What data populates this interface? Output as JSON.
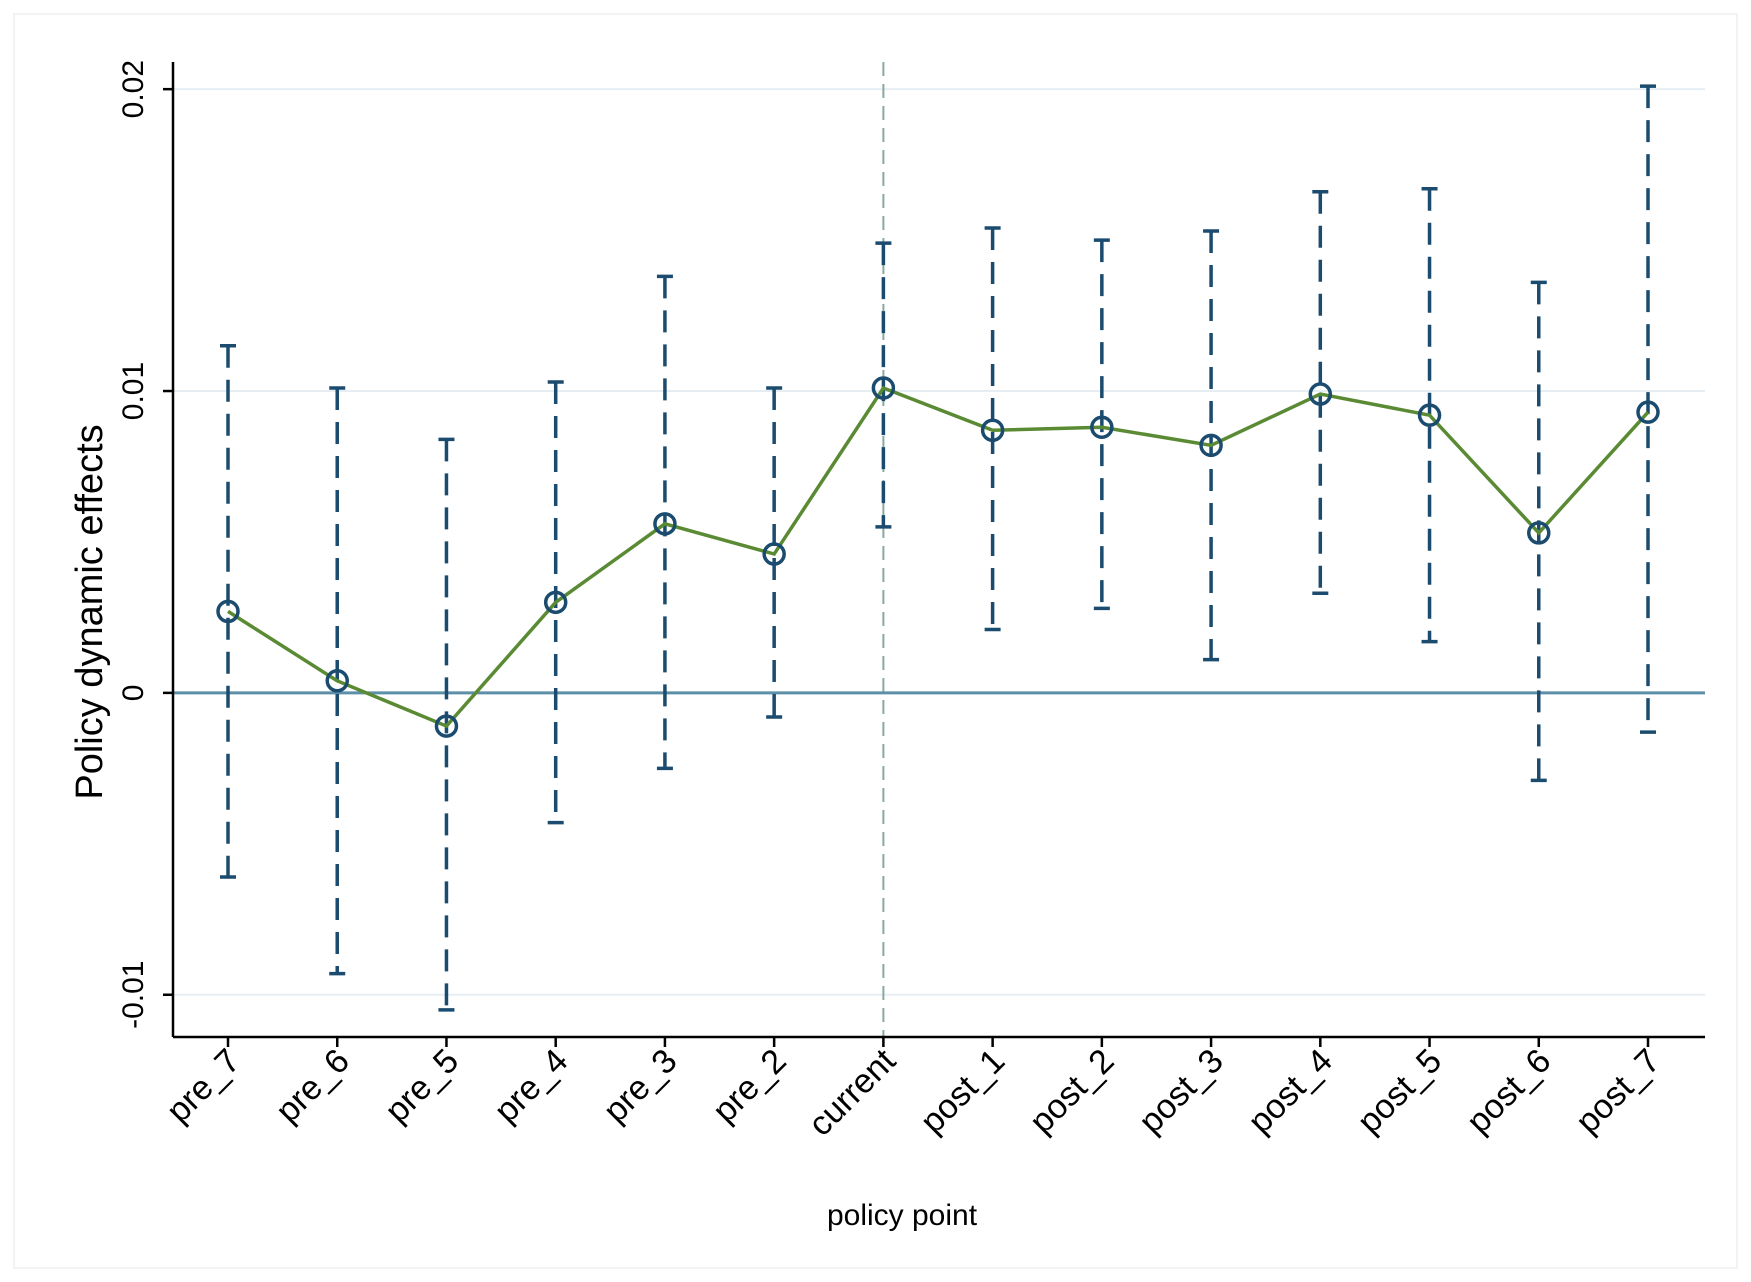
{
  "chart_data": {
    "type": "line",
    "xlabel": "policy point",
    "ylabel": "Policy dynamic effects",
    "categories": [
      "pre_7",
      "pre_6",
      "pre_5",
      "pre_4",
      "pre_3",
      "pre_2",
      "current",
      "post_1",
      "post_2",
      "post_3",
      "post_4",
      "post_5",
      "post_6",
      "post_7"
    ],
    "estimates": [
      0.0027,
      0.0004,
      -0.0011,
      0.003,
      0.0056,
      0.0046,
      0.0101,
      0.0087,
      0.0088,
      0.0082,
      0.0099,
      0.0092,
      0.0053,
      0.0093
    ],
    "ci_lower": [
      -0.0061,
      -0.0093,
      -0.0105,
      -0.0043,
      -0.0025,
      -0.0008,
      0.0055,
      0.0021,
      0.0028,
      0.0011,
      0.0033,
      0.0017,
      -0.0029,
      -0.0013
    ],
    "ci_upper": [
      0.0115,
      0.0101,
      0.0084,
      0.0103,
      0.0138,
      0.0101,
      0.0149,
      0.0154,
      0.015,
      0.0153,
      0.0166,
      0.0167,
      0.0136,
      0.0201
    ],
    "yticks": [
      -0.01,
      0,
      0.01,
      0.02
    ],
    "ytick_labels": [
      "-0.01",
      "0",
      "0.01",
      "0.02"
    ],
    "ylim": [
      -0.0114,
      0.0209
    ],
    "reference_line_y": 0,
    "reference_line_x": "current",
    "grid": true,
    "legend": "none",
    "colors": {
      "line": "#5a8a33",
      "marker": "#1b4b6e",
      "ci": "#1b4b6e",
      "zero_line": "#5e8fa8",
      "gridline": "#e6eef4",
      "vline": "#8aa8a0"
    }
  }
}
